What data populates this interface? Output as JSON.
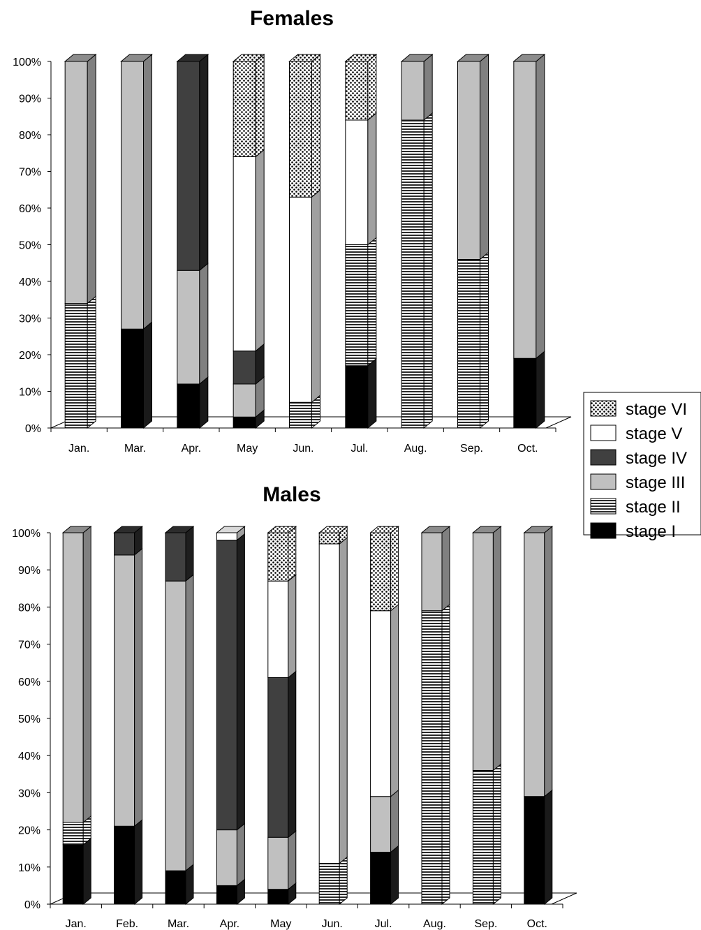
{
  "chart_data": [
    {
      "type": "bar",
      "stacked": true,
      "percent": true,
      "three_d": true,
      "title": "Females",
      "categories": [
        "Jan.",
        "Mar.",
        "Apr.",
        "May",
        "Jun.",
        "Jul.",
        "Aug.",
        "Sep.",
        "Oct."
      ],
      "ylim": [
        0,
        100
      ],
      "yticks": [
        "0%",
        "10%",
        "20%",
        "30%",
        "40%",
        "50%",
        "60%",
        "70%",
        "80%",
        "90%",
        "100%"
      ],
      "series": [
        {
          "name": "stage I",
          "values": [
            0,
            27,
            12,
            3,
            0,
            17,
            0,
            0,
            19
          ]
        },
        {
          "name": "stage II",
          "values": [
            34,
            0,
            0,
            0,
            7,
            33,
            84,
            46,
            0
          ]
        },
        {
          "name": "stage III",
          "values": [
            66,
            73,
            31,
            9,
            0,
            0,
            16,
            54,
            81
          ]
        },
        {
          "name": "stage IV",
          "values": [
            0,
            0,
            57,
            9,
            0,
            0,
            0,
            0,
            0
          ]
        },
        {
          "name": "stage V",
          "values": [
            0,
            0,
            0,
            53,
            56,
            34,
            0,
            0,
            0
          ]
        },
        {
          "name": "stage VI",
          "values": [
            0,
            0,
            0,
            26,
            37,
            16,
            0,
            0,
            0
          ]
        }
      ]
    },
    {
      "type": "bar",
      "stacked": true,
      "percent": true,
      "three_d": true,
      "title": "Males",
      "categories": [
        "Jan.",
        "Feb.",
        "Mar.",
        "Apr.",
        "May",
        "Jun.",
        "Jul.",
        "Aug.",
        "Sep.",
        "Oct."
      ],
      "ylim": [
        0,
        100
      ],
      "yticks": [
        "0%",
        "10%",
        "20%",
        "30%",
        "40%",
        "50%",
        "60%",
        "70%",
        "80%",
        "90%",
        "100%"
      ],
      "series": [
        {
          "name": "stage I",
          "values": [
            16,
            21,
            9,
            5,
            4,
            0,
            14,
            0,
            0,
            29
          ]
        },
        {
          "name": "stage II",
          "values": [
            6,
            0,
            0,
            0,
            0,
            11,
            0,
            79,
            36,
            0
          ]
        },
        {
          "name": "stage III",
          "values": [
            78,
            73,
            78,
            15,
            14,
            0,
            15,
            21,
            64,
            71
          ]
        },
        {
          "name": "stage IV",
          "values": [
            0,
            6,
            13,
            78,
            43,
            0,
            0,
            0,
            0,
            0
          ]
        },
        {
          "name": "stage V",
          "values": [
            0,
            0,
            0,
            2,
            26,
            86,
            50,
            0,
            0,
            0
          ]
        },
        {
          "name": "stage VI",
          "values": [
            0,
            0,
            0,
            0,
            13,
            3,
            21,
            0,
            0,
            0
          ]
        }
      ]
    }
  ],
  "legend": {
    "placement": "right",
    "items": [
      {
        "label": "stage VI",
        "pattern": "dots"
      },
      {
        "label": "stage V",
        "pattern": "white"
      },
      {
        "label": "stage IV",
        "pattern": "dark"
      },
      {
        "label": "stage III",
        "pattern": "light"
      },
      {
        "label": "stage II",
        "pattern": "hlines"
      },
      {
        "label": "stage I",
        "pattern": "black"
      }
    ]
  },
  "colors": {
    "stage I": "#000000",
    "stage II": "#d0d0d0",
    "stage III": "#bfbfbf",
    "stage IV": "#404040",
    "stage V": "#ffffff",
    "stage VI": "#000000"
  }
}
